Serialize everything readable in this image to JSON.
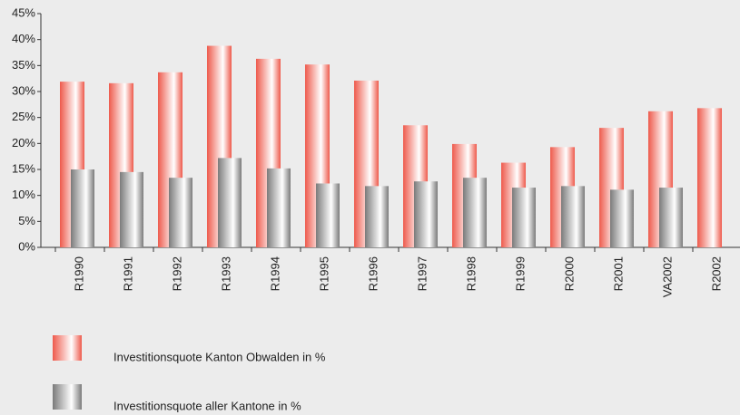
{
  "chart_data": {
    "type": "bar",
    "categories": [
      "R1990",
      "R1991",
      "R1992",
      "R1993",
      "R1994",
      "R1995",
      "R1996",
      "R1997",
      "R1998",
      "R1999",
      "R2000",
      "R2001",
      "VA2002",
      "R2002"
    ],
    "series": [
      {
        "name": "Investitionsquote Kanton Obwalden in %",
        "color": "#ee5a4c",
        "values": [
          31.9,
          31.6,
          33.7,
          38.8,
          36.3,
          35.2,
          32.1,
          23.5,
          19.9,
          16.3,
          19.3,
          23.0,
          26.2,
          26.8
        ]
      },
      {
        "name": "Investitionsquote aller Kantone in %",
        "color": "#7a7a7a",
        "values": [
          15.0,
          14.5,
          13.4,
          17.2,
          15.2,
          12.3,
          11.8,
          12.7,
          13.4,
          11.5,
          11.8,
          11.1,
          11.5,
          null
        ]
      }
    ],
    "ylim": [
      0,
      45
    ],
    "yticks": [
      {
        "value": 0,
        "label": "0%"
      },
      {
        "value": 5,
        "label": "5%"
      },
      {
        "value": 10,
        "label": "10%"
      },
      {
        "value": 15,
        "label": "15%"
      },
      {
        "value": 20,
        "label": "20%"
      },
      {
        "value": 25,
        "label": "25%"
      },
      {
        "value": 30,
        "label": "30%"
      },
      {
        "value": 35,
        "label": "35%"
      },
      {
        "value": 40,
        "label": "40%"
      },
      {
        "value": 45,
        "label": "45%"
      }
    ]
  }
}
